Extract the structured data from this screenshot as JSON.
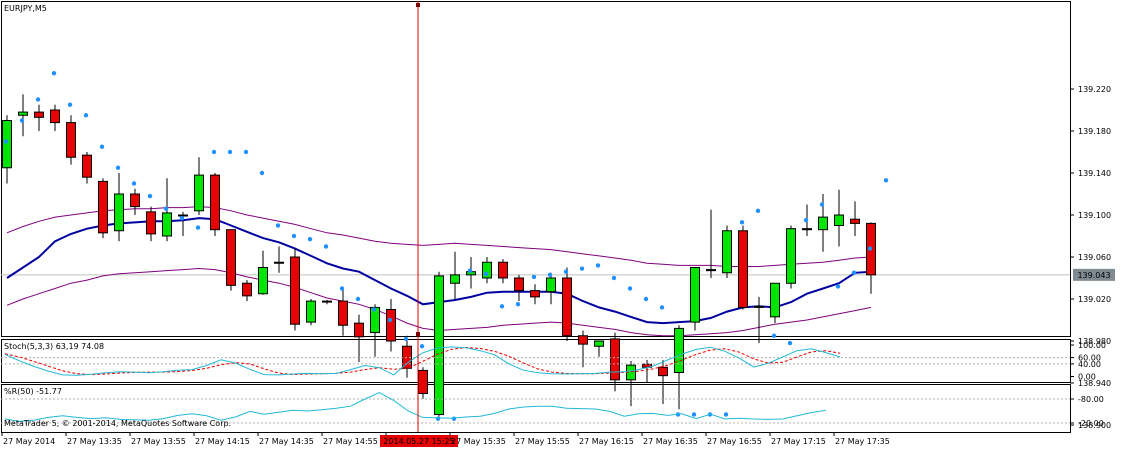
{
  "symbol_label": "EURJPY,M5",
  "stoch_label": "Stoch(5,3,3) 63,19 74.08",
  "wpr_label": "%R(50) -51.77",
  "copyright": "MetaTrader 5, © 2001-2014, MetaQuotes Software Corp.",
  "cursor_time_label": "2014.05.27 15:25",
  "current_price_label": "139.043",
  "colors": {
    "bull": "#00e600",
    "bear": "#e60000",
    "sar": "#1e90ff",
    "ma": "#0000a0",
    "band": "#800080",
    "stoch_main": "#22b8d8",
    "stoch_signal": "#e60000",
    "wpr": "#22b8d8",
    "cursor": "#e60000"
  },
  "chart_data": [
    {
      "type": "candlestick",
      "title": "EURJPY,M5",
      "ylim": [
        138.87,
        139.25
      ],
      "y_ticks": [
        "139.220",
        "139.180",
        "139.140",
        "139.100",
        "139.060",
        "139.020",
        "138.980",
        "138.940",
        "138.900"
      ],
      "y_tick_values": [
        139.22,
        139.18,
        139.14,
        139.1,
        139.06,
        139.02,
        138.98,
        138.94,
        138.9
      ],
      "x_ticks": [
        "27 May 2014",
        "27 May 13:35",
        "27 May 13:55",
        "27 May 14:15",
        "27 May 14:35",
        "27 May 14:55",
        "",
        "27 May 15:35",
        "27 May 15:55",
        "27 May 16:15",
        "27 May 16:35",
        "27 May 16:55",
        "27 May 17:15",
        "27 May 17:35"
      ],
      "x_tick_index": [
        0,
        4,
        8,
        12,
        16,
        20,
        24,
        28,
        32,
        36,
        40,
        44,
        48,
        52
      ],
      "current_price": 139.043,
      "candles": [
        {
          "o": 139.145,
          "h": 139.195,
          "l": 139.13,
          "c": 139.19
        },
        {
          "o": 139.195,
          "h": 139.215,
          "l": 139.175,
          "c": 139.198
        },
        {
          "o": 139.198,
          "h": 139.205,
          "l": 139.18,
          "c": 139.193
        },
        {
          "o": 139.2,
          "h": 139.205,
          "l": 139.18,
          "c": 139.188
        },
        {
          "o": 139.188,
          "h": 139.195,
          "l": 139.148,
          "c": 139.155
        },
        {
          "o": 139.157,
          "h": 139.16,
          "l": 139.13,
          "c": 139.136
        },
        {
          "o": 139.132,
          "h": 139.135,
          "l": 139.078,
          "c": 139.083
        },
        {
          "o": 139.085,
          "h": 139.14,
          "l": 139.075,
          "c": 139.12
        },
        {
          "o": 139.12,
          "h": 139.125,
          "l": 139.1,
          "c": 139.108
        },
        {
          "o": 139.103,
          "h": 139.108,
          "l": 139.075,
          "c": 139.082
        },
        {
          "o": 139.08,
          "h": 139.135,
          "l": 139.075,
          "c": 139.102
        },
        {
          "o": 139.1,
          "h": 139.103,
          "l": 139.08,
          "c": 139.1
        },
        {
          "o": 139.104,
          "h": 139.155,
          "l": 139.1,
          "c": 139.138
        },
        {
          "o": 139.138,
          "h": 139.14,
          "l": 139.08,
          "c": 139.086
        },
        {
          "o": 139.086,
          "h": 139.086,
          "l": 139.028,
          "c": 139.033
        },
        {
          "o": 139.035,
          "h": 139.038,
          "l": 139.018,
          "c": 139.023
        },
        {
          "o": 139.025,
          "h": 139.066,
          "l": 139.024,
          "c": 139.05
        },
        {
          "o": 139.055,
          "h": 139.07,
          "l": 139.045,
          "c": 139.055
        },
        {
          "o": 139.06,
          "h": 139.068,
          "l": 138.99,
          "c": 138.996
        },
        {
          "o": 138.998,
          "h": 139.02,
          "l": 138.995,
          "c": 139.018
        },
        {
          "o": 139.018,
          "h": 139.019,
          "l": 139.015,
          "c": 139.018
        },
        {
          "o": 139.018,
          "h": 139.03,
          "l": 138.985,
          "c": 138.995
        },
        {
          "o": 138.997,
          "h": 139.005,
          "l": 138.96,
          "c": 138.984
        },
        {
          "o": 138.988,
          "h": 139.015,
          "l": 138.965,
          "c": 139.012
        },
        {
          "o": 139.01,
          "h": 139.02,
          "l": 138.97,
          "c": 138.98
        },
        {
          "o": 138.975,
          "h": 138.985,
          "l": 138.945,
          "c": 138.954
        },
        {
          "o": 138.952,
          "h": 138.955,
          "l": 138.925,
          "c": 138.93
        },
        {
          "o": 138.91,
          "h": 139.046,
          "l": 138.908,
          "c": 139.042
        },
        {
          "o": 139.035,
          "h": 139.065,
          "l": 139.02,
          "c": 139.043
        },
        {
          "o": 139.043,
          "h": 139.06,
          "l": 139.03,
          "c": 139.046
        },
        {
          "o": 139.04,
          "h": 139.06,
          "l": 139.035,
          "c": 139.055
        },
        {
          "o": 139.055,
          "h": 139.058,
          "l": 139.035,
          "c": 139.04
        },
        {
          "o": 139.04,
          "h": 139.043,
          "l": 139.018,
          "c": 139.028
        },
        {
          "o": 139.028,
          "h": 139.034,
          "l": 139.015,
          "c": 139.022
        },
        {
          "o": 139.027,
          "h": 139.045,
          "l": 139.015,
          "c": 139.04
        },
        {
          "o": 139.04,
          "h": 139.05,
          "l": 138.98,
          "c": 138.985
        },
        {
          "o": 138.985,
          "h": 138.99,
          "l": 138.955,
          "c": 138.977
        },
        {
          "o": 138.975,
          "h": 138.98,
          "l": 138.965,
          "c": 138.98
        },
        {
          "o": 138.982,
          "h": 138.988,
          "l": 138.932,
          "c": 138.943
        },
        {
          "o": 138.943,
          "h": 138.961,
          "l": 138.918,
          "c": 138.957
        },
        {
          "o": 138.958,
          "h": 138.962,
          "l": 138.94,
          "c": 138.955
        },
        {
          "o": 138.955,
          "h": 138.962,
          "l": 138.92,
          "c": 138.947
        },
        {
          "o": 138.95,
          "h": 138.995,
          "l": 138.915,
          "c": 138.992
        },
        {
          "o": 138.998,
          "h": 139.05,
          "l": 138.99,
          "c": 139.05
        },
        {
          "o": 139.048,
          "h": 139.105,
          "l": 139.04,
          "c": 139.047
        },
        {
          "o": 139.045,
          "h": 139.09,
          "l": 139.04,
          "c": 139.085
        },
        {
          "o": 139.085,
          "h": 139.09,
          "l": 139.01,
          "c": 139.012
        },
        {
          "o": 139.012,
          "h": 139.022,
          "l": 138.978,
          "c": 139.013
        },
        {
          "o": 139.003,
          "h": 139.035,
          "l": 138.997,
          "c": 139.035
        },
        {
          "o": 139.035,
          "h": 139.09,
          "l": 139.03,
          "c": 139.087
        },
        {
          "o": 139.087,
          "h": 139.11,
          "l": 139.08,
          "c": 139.086
        },
        {
          "o": 139.086,
          "h": 139.12,
          "l": 139.065,
          "c": 139.098
        },
        {
          "o": 139.09,
          "h": 139.124,
          "l": 139.07,
          "c": 139.1
        },
        {
          "o": 139.096,
          "h": 139.113,
          "l": 139.08,
          "c": 139.092
        },
        {
          "o": 139.092,
          "h": 139.093,
          "l": 139.025,
          "c": 139.043
        }
      ],
      "sar": [
        139.17,
        139.19,
        139.21,
        139.235,
        139.205,
        139.195,
        139.165,
        139.145,
        139.13,
        139.118,
        139.106,
        139.097,
        139.088,
        139.16,
        139.16,
        139.16,
        139.14,
        139.09,
        139.08,
        139.077,
        139.07,
        139.03,
        139.02,
        139.01,
        139.0,
        138.982,
        138.975,
        138.906,
        138.906,
        139.047,
        139.044,
        139.013,
        139.015,
        139.041,
        139.043,
        139.046,
        139.049,
        139.052,
        139.04,
        139.03,
        139.02,
        139.012,
        138.91,
        138.91,
        138.91,
        138.91,
        139.093,
        139.104,
        138.985,
        138.978,
        139.095,
        139.11,
        139.032,
        139.045,
        139.068,
        139.133
      ],
      "ma": [
        139.04,
        139.05,
        139.06,
        139.075,
        139.082,
        139.087,
        139.09,
        139.092,
        139.093,
        139.094,
        139.094,
        139.095,
        139.097,
        139.096,
        139.09,
        139.084,
        139.078,
        139.074,
        139.068,
        139.061,
        139.054,
        139.049,
        139.046,
        139.038,
        139.03,
        139.023,
        139.015,
        139.017,
        139.019,
        139.022,
        139.026,
        139.027,
        139.027,
        139.027,
        139.027,
        139.025,
        139.018,
        139.012,
        139.008,
        139.003,
        138.998,
        138.997,
        138.998,
        138.999,
        139.002,
        139.008,
        139.012,
        139.013,
        139.012,
        139.017,
        139.025,
        139.03,
        139.035,
        139.045,
        139.046
      ],
      "band_upper": [
        139.083,
        139.089,
        139.094,
        139.098,
        139.1,
        139.102,
        139.104,
        139.105,
        139.106,
        139.106,
        139.107,
        139.107,
        139.108,
        139.107,
        139.104,
        139.1,
        139.097,
        139.094,
        139.091,
        139.087,
        139.083,
        139.081,
        139.078,
        139.075,
        139.073,
        139.072,
        139.071,
        139.072,
        139.073,
        139.072,
        139.071,
        139.07,
        139.069,
        139.068,
        139.067,
        139.065,
        139.063,
        139.061,
        139.059,
        139.057,
        139.054,
        139.053,
        139.052,
        139.052,
        139.052,
        139.051,
        139.051,
        139.051,
        139.052,
        139.053,
        139.054,
        139.055,
        139.057,
        139.059,
        139.06
      ],
      "band_lower": [
        139.014,
        139.02,
        139.025,
        139.03,
        139.035,
        139.038,
        139.042,
        139.044,
        139.045,
        139.046,
        139.047,
        139.048,
        139.049,
        139.048,
        139.045,
        139.041,
        139.038,
        139.035,
        139.031,
        139.026,
        139.021,
        139.018,
        139.015,
        139.01,
        139.004,
        138.997,
        138.992,
        138.99,
        138.991,
        138.992,
        138.993,
        138.995,
        138.996,
        138.997,
        138.998,
        138.997,
        138.995,
        138.993,
        138.991,
        138.988,
        138.986,
        138.985,
        138.985,
        138.986,
        138.987,
        138.988,
        138.99,
        138.993,
        138.996,
        138.998,
        139.0,
        139.003,
        139.006,
        139.009,
        139.012
      ]
    },
    {
      "type": "line",
      "title": "Stoch(5,3,3) 63,19 74.08",
      "ylim": [
        0,
        100
      ],
      "y_ticks": [
        "100.00",
        "60.00",
        "40.00",
        "0.00"
      ],
      "y_tick_values": [
        100,
        60,
        40,
        0
      ],
      "series": [
        {
          "name": "Main",
          "values": [
            70,
            50,
            32,
            17,
            5,
            4,
            7,
            12,
            15,
            14,
            12,
            15,
            20,
            22,
            35,
            53,
            43,
            23,
            6,
            5,
            8,
            10,
            9,
            10,
            22,
            35,
            28,
            5,
            45,
            75,
            90,
            94,
            91,
            82,
            69,
            40,
            20,
            12,
            9,
            8,
            9,
            10,
            14,
            15,
            22,
            33,
            52,
            71,
            86,
            93,
            80,
            58,
            30,
            42,
            62,
            82,
            88,
            76,
            62
          ]
        },
        {
          "name": "Signal",
          "values": [
            72,
            62,
            48,
            33,
            18,
            9,
            6,
            8,
            11,
            13,
            14,
            14,
            16,
            19,
            26,
            37,
            44,
            40,
            24,
            11,
            6,
            8,
            9,
            10,
            14,
            22,
            28,
            23,
            26,
            48,
            70,
            86,
            92,
            89,
            80,
            64,
            43,
            24,
            14,
            10,
            9,
            9,
            11,
            13,
            17,
            24,
            36,
            52,
            70,
            84,
            88,
            77,
            56,
            43,
            45,
            62,
            78,
            82,
            74
          ]
        }
      ]
    },
    {
      "type": "line",
      "title": "%R(50) -51.77",
      "ylim": [
        -100,
        0
      ],
      "y_ticks": [
        "-20.00",
        "-80.00"
      ],
      "y_tick_values": [
        -20,
        -80
      ],
      "series": [
        {
          "name": "%R(50)",
          "values": [
            -30,
            -24,
            -27,
            -34,
            -38,
            -34,
            -31,
            -33,
            -29,
            -28,
            -27,
            -31,
            -39,
            -43,
            -38,
            -27,
            -35,
            -49,
            -42,
            -47,
            -52,
            -50,
            -53,
            -57,
            -62,
            -80,
            -96,
            -76,
            -50,
            -34,
            -33,
            -32,
            -35,
            -37,
            -44,
            -55,
            -60,
            -62,
            -62,
            -57,
            -56,
            -55,
            -49,
            -37,
            -43,
            -44,
            -39,
            -43,
            -31,
            -42,
            -30,
            -32,
            -30,
            -29,
            -30,
            -38,
            -46,
            -52
          ]
        }
      ]
    }
  ]
}
